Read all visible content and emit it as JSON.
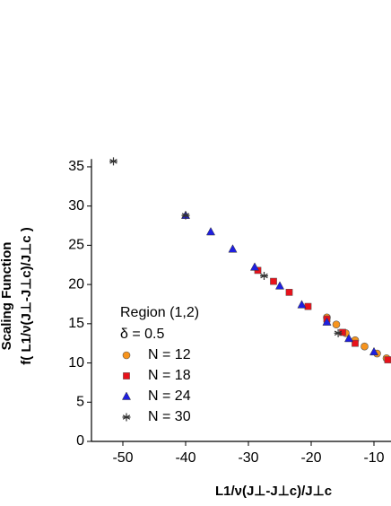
{
  "chart_data": {
    "type": "scatter",
    "x_label": "L1/ν(J⊥-J⊥c)/J⊥c",
    "y_label": "Scaling Function",
    "y_label_2": "f( L1/ν(J⊥-J⊥c)/J⊥c )",
    "legend_title": "Region (1,2)",
    "legend_subtitle": "δ = 0.5",
    "xlim": [
      -55,
      -7.5
    ],
    "ylim": [
      0,
      36
    ],
    "xticks": [
      -50,
      -40,
      -30,
      -20,
      -10
    ],
    "yticks": [
      0,
      5,
      10,
      15,
      20,
      25,
      30,
      35
    ],
    "grid": false,
    "legend": "lower left",
    "series": [
      {
        "name": "N = 12",
        "color": "#f7941d",
        "marker": "circle",
        "x": [
          -17.5,
          -16,
          -14.5,
          -13,
          -11.5,
          -9.5,
          -8
        ],
        "values": [
          15.8,
          14.9,
          13.8,
          12.9,
          12.1,
          11.2,
          10.6
        ]
      },
      {
        "name": "N = 18",
        "color": "#e8121b",
        "marker": "square",
        "x": [
          -28.5,
          -26,
          -23.5,
          -20.5,
          -17.5,
          -15,
          -13,
          -7.8
        ],
        "values": [
          21.8,
          20.4,
          19.0,
          17.2,
          15.6,
          13.9,
          12.5,
          10.4
        ]
      },
      {
        "name": "N = 24",
        "color": "#1f1fe0",
        "marker": "triangle",
        "x": [
          -40,
          -36,
          -32.5,
          -29,
          -25,
          -21.5,
          -17.5,
          -14,
          -10
        ],
        "values": [
          28.8,
          26.7,
          24.5,
          22.2,
          19.8,
          17.4,
          15.2,
          13.1,
          11.4
        ]
      },
      {
        "name": "N = 30",
        "color": "#333333",
        "marker": "star",
        "x": [
          -51.5,
          -40,
          -27.5,
          -15.7
        ],
        "values": [
          35.7,
          28.8,
          21.1,
          13.8
        ]
      }
    ]
  }
}
